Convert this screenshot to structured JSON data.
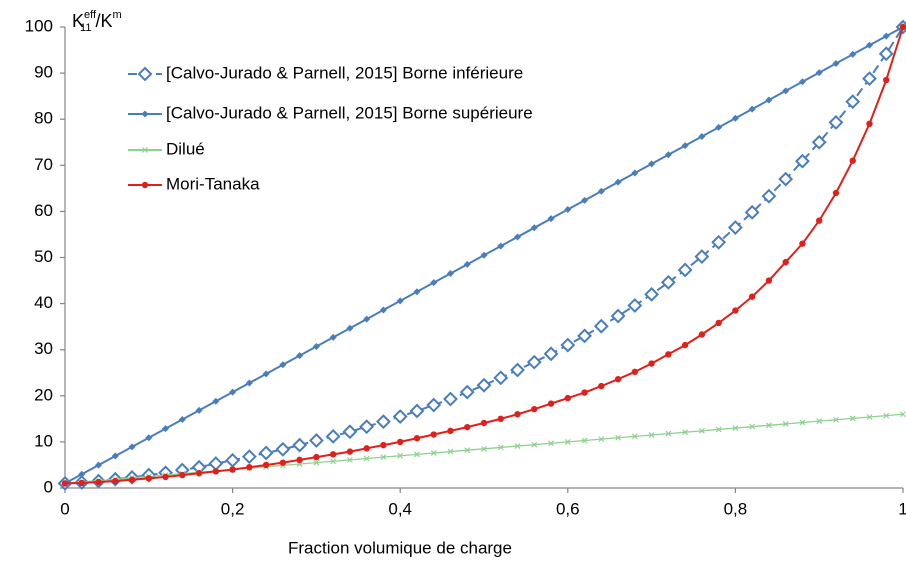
{
  "chart_data": {
    "type": "line",
    "y_label": {
      "base": "K",
      "sub": "11",
      "sup": "eff",
      "rest": "/K",
      "sup2": "m"
    },
    "x_label": "Fraction volumique de charge",
    "x": [
      0,
      0.02,
      0.04,
      0.06,
      0.08,
      0.1,
      0.12,
      0.14,
      0.16,
      0.18,
      0.2,
      0.22,
      0.24,
      0.26,
      0.28,
      0.3,
      0.32,
      0.34,
      0.36,
      0.38,
      0.4,
      0.42,
      0.44,
      0.46,
      0.48,
      0.5,
      0.52,
      0.54,
      0.56,
      0.58,
      0.6,
      0.62,
      0.64,
      0.66,
      0.68,
      0.7,
      0.72,
      0.74,
      0.76,
      0.78,
      0.8,
      0.82,
      0.84,
      0.86,
      0.88,
      0.9,
      0.92,
      0.94,
      0.96,
      0.98,
      1
    ],
    "series": [
      {
        "name": "[Calvo-Jurado & Parnell, 2015] Borne inférieure",
        "color": "#4a7ebb",
        "marker": "open-diamond",
        "dashed": true,
        "values": [
          1,
          1.2,
          1.5,
          1.9,
          2.3,
          2.8,
          3.3,
          3.9,
          4.5,
          5.3,
          6,
          6.8,
          7.6,
          8.4,
          9.3,
          10.3,
          11.2,
          12.2,
          13.3,
          14.4,
          15.5,
          16.7,
          18,
          19.3,
          20.8,
          22.3,
          23.9,
          25.6,
          27.3,
          29.1,
          31,
          33,
          35.1,
          37.3,
          39.6,
          42,
          44.6,
          47.3,
          50.2,
          53.3,
          56.5,
          59.8,
          63.3,
          67,
          70.9,
          75,
          79.3,
          83.8,
          88.8,
          94.2,
          100
        ]
      },
      {
        "name": "[Calvo-Jurado & Parnell, 2015] Borne supérieure",
        "color": "#4a7ebb",
        "marker": "diamond",
        "dashed": false,
        "values": [
          1,
          2.98,
          4.96,
          6.94,
          8.92,
          10.9,
          12.88,
          14.86,
          16.84,
          18.82,
          20.8,
          22.78,
          24.76,
          26.74,
          28.72,
          30.7,
          32.68,
          34.66,
          36.64,
          38.62,
          40.6,
          42.58,
          44.56,
          46.54,
          48.52,
          50.5,
          52.48,
          54.46,
          56.44,
          58.42,
          60.4,
          62.38,
          64.36,
          66.34,
          68.32,
          70.3,
          72.28,
          74.26,
          76.24,
          78.22,
          80.2,
          82.18,
          84.16,
          86.14,
          88.12,
          90.1,
          92.08,
          94.06,
          96.04,
          98.02,
          100
        ]
      },
      {
        "name": "Dilué",
        "color": "#8fd18f",
        "marker": "cross",
        "dashed": false,
        "values": [
          1,
          1.3,
          1.6,
          1.9,
          2.2,
          2.5,
          2.8,
          3.1,
          3.4,
          3.7,
          4,
          4.3,
          4.6,
          4.9,
          5.2,
          5.5,
          5.8,
          6.1,
          6.4,
          6.7,
          7,
          7.3,
          7.6,
          7.9,
          8.2,
          8.5,
          8.8,
          9.1,
          9.4,
          9.7,
          10,
          10.3,
          10.6,
          10.9,
          11.2,
          11.5,
          11.8,
          12.1,
          12.4,
          12.7,
          13,
          13.3,
          13.6,
          13.9,
          14.2,
          14.5,
          14.8,
          15.1,
          15.4,
          15.7,
          16
        ]
      },
      {
        "name": "Mori-Tanaka",
        "color": "#e0201b",
        "marker": "circle",
        "dashed": false,
        "values": [
          1,
          1.1,
          1.3,
          1.5,
          1.8,
          2.1,
          2.4,
          2.8,
          3.2,
          3.6,
          4,
          4.5,
          5,
          5.5,
          6.1,
          6.7,
          7.3,
          7.9,
          8.6,
          9.3,
          10,
          10.8,
          11.6,
          12.4,
          13.2,
          14.1,
          15,
          16,
          17.1,
          18.3,
          19.5,
          20.7,
          22.1,
          23.6,
          25.2,
          27,
          29,
          31,
          33.3,
          35.8,
          38.5,
          41.5,
          45,
          49,
          53,
          58,
          64,
          71,
          79,
          88.5,
          100
        ]
      }
    ],
    "xlim": [
      0,
      1
    ],
    "ylim": [
      0,
      100
    ],
    "xticks": [
      0,
      {
        "value": 0.2,
        "label": "0,2"
      },
      {
        "value": 0.4,
        "label": "0,4"
      },
      {
        "value": 0.6,
        "label": "0,6"
      },
      {
        "value": 0.8,
        "label": "0,8"
      },
      1
    ],
    "yticks": [
      0,
      10,
      20,
      30,
      40,
      50,
      60,
      70,
      80,
      90,
      100
    ],
    "grid": false
  }
}
